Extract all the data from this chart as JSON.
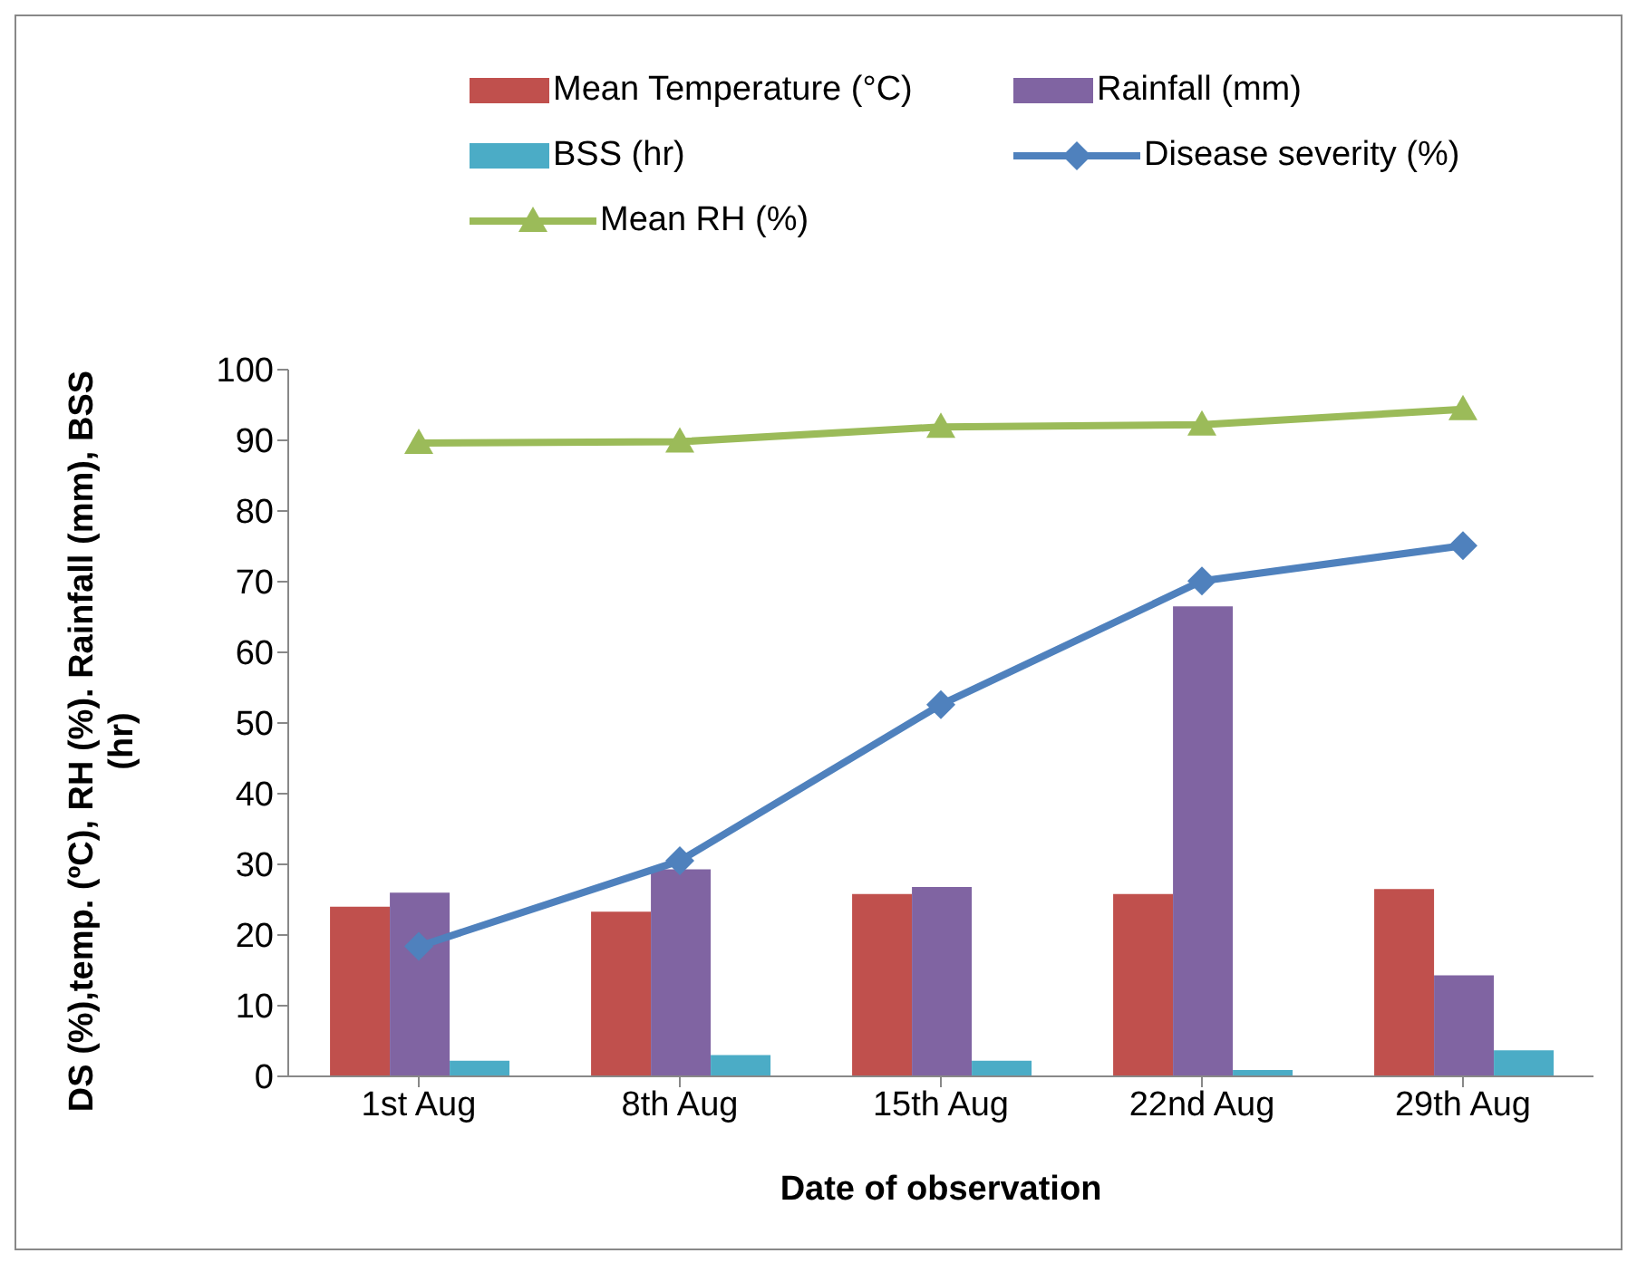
{
  "chart_data": {
    "type": "bar",
    "xlabel": "Date of observation",
    "ylabel": "DS (%),temp. (ºC), RH (%). Rainfall (mm), BSS (hr)",
    "categories": [
      "1st Aug",
      "8th Aug",
      "15th Aug",
      "22nd Aug",
      "29th Aug"
    ],
    "series": [
      {
        "name": "Mean Temperature (°C)",
        "color": "#c0504d",
        "values": [
          24.0,
          23.3,
          25.8,
          25.8,
          26.5
        ]
      },
      {
        "name": "Rainfall (mm)",
        "color": "#8064a2",
        "values": [
          26.0,
          29.3,
          26.8,
          66.5,
          14.3
        ]
      },
      {
        "name": "BSS (hr)",
        "color": "#4bacc6",
        "values": [
          2.2,
          3.0,
          2.2,
          0.9,
          3.7
        ]
      },
      {
        "name": "Disease severity (%)",
        "type": "line",
        "marker": "diamond",
        "color": "#4f81bd",
        "values": [
          18.4,
          30.5,
          52.6,
          70.1,
          75.1
        ]
      },
      {
        "name": "Mean RH (%)",
        "type": "line",
        "marker": "triangle",
        "color": "#9bbb59",
        "values": [
          89.6,
          89.8,
          91.9,
          92.2,
          94.4
        ]
      }
    ],
    "ylim": [
      0,
      100
    ],
    "yticks": [
      0,
      10,
      20,
      30,
      40,
      50,
      60,
      70,
      80,
      90,
      100
    ],
    "grid": false,
    "legend": "top"
  }
}
